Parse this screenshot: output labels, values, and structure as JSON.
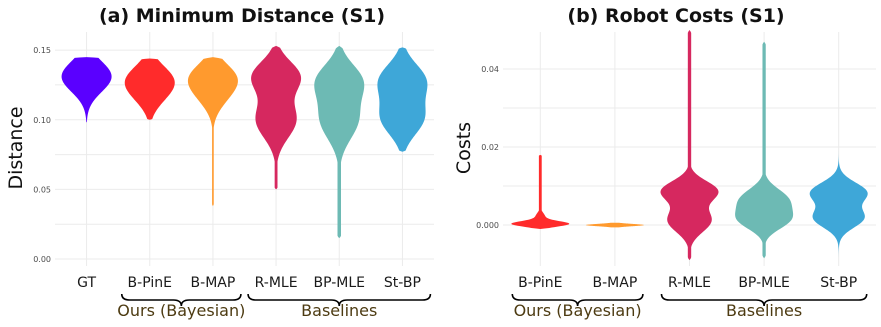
{
  "colors": {
    "GT": "#5a00ff",
    "B-PinE": "#ff2b2b",
    "B-MAP": "#ff9a2e",
    "R-MLE": "#d6285f",
    "BP-MLE": "#6dbab4",
    "St-BP": "#3ea7d8",
    "group_label": "#4d3b12",
    "grid": "#ebebeb"
  },
  "chart_data": [
    {
      "type": "violin",
      "title": "(a) Minimum Distance (S1)",
      "xlabel": "",
      "ylabel": "Distance",
      "ylim": [
        -0.005,
        0.163
      ],
      "yticks": [
        0.0,
        0.05,
        0.1,
        0.15
      ],
      "ytick_labels": [
        "0.00",
        "0.05",
        "0.10",
        "0.15"
      ],
      "grid": true,
      "categories": [
        "GT",
        "B-PinE",
        "B-MAP",
        "R-MLE",
        "BP-MLE",
        "St-BP"
      ],
      "groups": [
        {
          "label": "Ours (Bayesian)",
          "members": [
            "B-PinE",
            "B-MAP"
          ]
        },
        {
          "label": "Baselines",
          "members": [
            "R-MLE",
            "BP-MLE",
            "St-BP"
          ]
        }
      ],
      "series": [
        {
          "category": "GT",
          "min": 0.098,
          "max": 0.145,
          "modes": [
            [
              0.131,
              0.011,
              1.0
            ]
          ],
          "tail": 0.0
        },
        {
          "category": "B-PinE",
          "min": 0.1,
          "max": 0.144,
          "modes": [
            [
              0.13,
              0.01,
              1.0
            ],
            [
              0.118,
              0.01,
              0.55
            ]
          ],
          "tail": 0.0
        },
        {
          "category": "B-MAP",
          "min": 0.038,
          "max": 0.145,
          "modes": [
            [
              0.131,
              0.01,
              1.0
            ],
            [
              0.117,
              0.01,
              0.5
            ]
          ],
          "tail": 0.04
        },
        {
          "category": "R-MLE",
          "min": 0.05,
          "max": 0.153,
          "modes": [
            [
              0.131,
              0.011,
              1.0
            ],
            [
              0.1,
              0.013,
              0.85
            ]
          ],
          "tail": 0.06
        },
        {
          "category": "BP-MLE",
          "min": 0.015,
          "max": 0.153,
          "modes": [
            [
              0.128,
              0.012,
              1.0
            ],
            [
              0.1,
              0.014,
              0.85
            ]
          ],
          "tail": 0.08
        },
        {
          "category": "St-BP",
          "min": 0.077,
          "max": 0.152,
          "modes": [
            [
              0.128,
              0.012,
              1.0
            ],
            [
              0.101,
              0.012,
              0.9
            ]
          ],
          "tail": 0.0
        }
      ]
    },
    {
      "type": "violin",
      "title": "(b) Robot Costs (S1)",
      "xlabel": "",
      "ylabel": "Costs",
      "ylim": [
        -0.0105,
        0.0495
      ],
      "yticks": [
        0.0,
        0.02,
        0.04
      ],
      "ytick_labels": [
        "0.000",
        "0.02",
        "0.04"
      ],
      "grid": true,
      "categories": [
        "B-PinE",
        "B-MAP",
        "R-MLE",
        "BP-MLE",
        "St-BP"
      ],
      "groups": [
        {
          "label": "Ours (Bayesian)",
          "members": [
            "B-PinE",
            "B-MAP"
          ]
        },
        {
          "label": "Baselines",
          "members": [
            "R-MLE",
            "BP-MLE",
            "St-BP"
          ]
        }
      ],
      "series": [
        {
          "category": "B-PinE",
          "min": -0.001,
          "max": 0.018,
          "modes": [
            [
              0.0003,
              0.0007,
              1.0
            ],
            [
              0.0022,
              0.001,
              0.16
            ]
          ],
          "tail": 0.05
        },
        {
          "category": "B-MAP",
          "min": -0.0006,
          "max": 0.0006,
          "modes": [
            [
              0.0,
              0.0003,
              0.62
            ]
          ],
          "tail": 0.0
        },
        {
          "category": "R-MLE",
          "min": -0.009,
          "max": 0.05,
          "modes": [
            [
              0.0087,
              0.0026,
              1.0
            ],
            [
              0.0012,
              0.003,
              0.78
            ]
          ],
          "tail": 0.06
        },
        {
          "category": "BP-MLE",
          "min": -0.0085,
          "max": 0.047,
          "modes": [
            [
              0.0065,
              0.0028,
              0.85
            ],
            [
              0.0013,
              0.0025,
              0.85
            ]
          ],
          "tail": 0.06
        },
        {
          "category": "St-BP",
          "min": -0.0085,
          "max": 0.021,
          "modes": [
            [
              0.0083,
              0.0026,
              1.0
            ],
            [
              0.0018,
              0.0025,
              0.88
            ]
          ],
          "tail": 0.0
        }
      ]
    }
  ]
}
